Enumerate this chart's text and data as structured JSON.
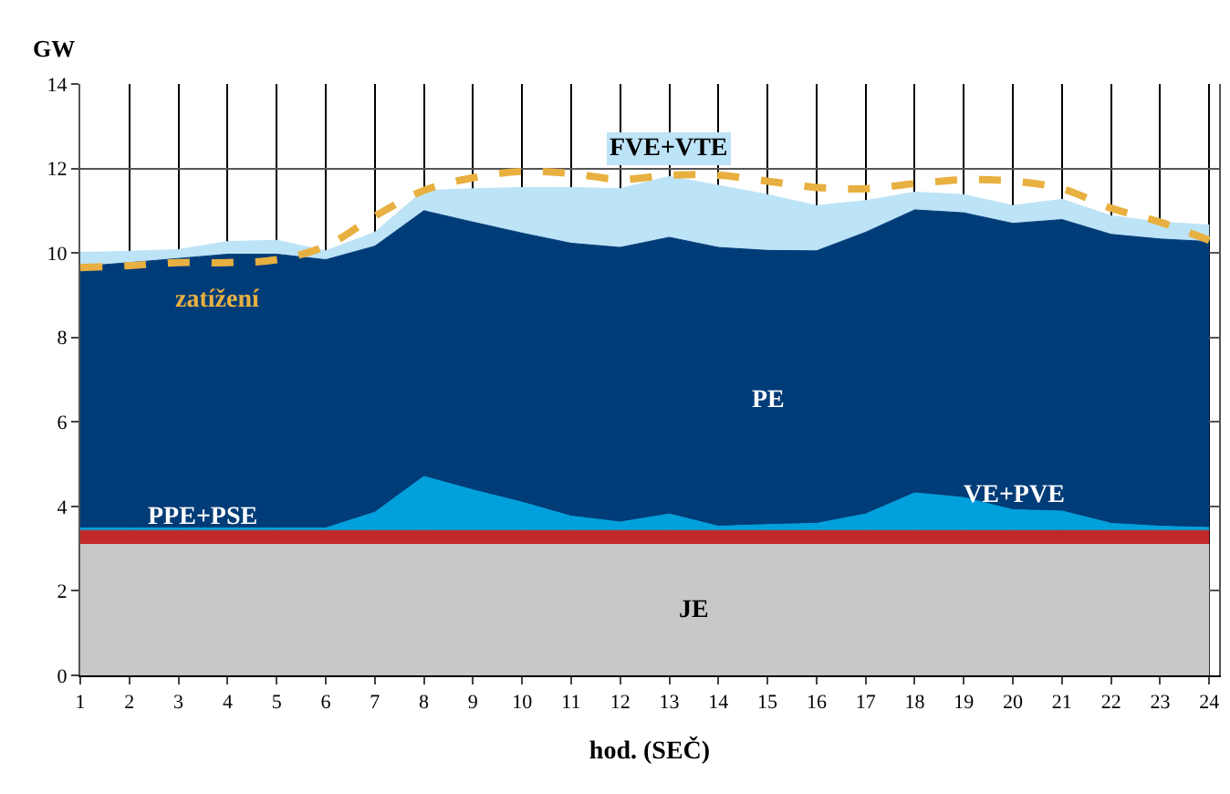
{
  "chart_data": {
    "type": "area",
    "stacked": true,
    "ylabel": "GW",
    "xlabel": "hod. (SEČ)",
    "x": [
      1,
      2,
      3,
      4,
      5,
      6,
      7,
      8,
      9,
      10,
      11,
      12,
      13,
      14,
      15,
      16,
      17,
      18,
      19,
      20,
      21,
      22,
      23,
      24
    ],
    "series": [
      {
        "name": "JE",
        "color": "#c8c8c8",
        "values": [
          3.1,
          3.1,
          3.1,
          3.1,
          3.1,
          3.1,
          3.1,
          3.1,
          3.1,
          3.1,
          3.1,
          3.1,
          3.1,
          3.1,
          3.1,
          3.1,
          3.1,
          3.1,
          3.1,
          3.1,
          3.1,
          3.1,
          3.1,
          3.1
        ]
      },
      {
        "name": "PPE+PSE",
        "color": "#c0282a",
        "values": [
          0.33,
          0.33,
          0.33,
          0.33,
          0.33,
          0.33,
          0.33,
          0.33,
          0.33,
          0.33,
          0.33,
          0.33,
          0.33,
          0.33,
          0.33,
          0.33,
          0.33,
          0.33,
          0.33,
          0.33,
          0.33,
          0.33,
          0.33,
          0.33
        ]
      },
      {
        "name": "VE+PVE",
        "color": "#00a0dc",
        "values": [
          0.06,
          0.06,
          0.06,
          0.06,
          0.06,
          0.06,
          0.43,
          1.28,
          0.96,
          0.67,
          0.34,
          0.2,
          0.39,
          0.1,
          0.14,
          0.17,
          0.39,
          0.89,
          0.78,
          0.49,
          0.46,
          0.17,
          0.1,
          0.07
        ]
      },
      {
        "name": "PE",
        "color": "#003c78",
        "values": [
          6.19,
          6.28,
          6.38,
          6.48,
          6.48,
          6.35,
          6.3,
          6.29,
          6.34,
          6.37,
          6.46,
          6.5,
          6.55,
          6.6,
          6.49,
          6.45,
          6.67,
          6.7,
          6.74,
          6.78,
          6.9,
          6.84,
          6.8,
          6.77
        ]
      },
      {
        "name": "FVE+VTE",
        "color": "#bde3f7",
        "values": [
          0.33,
          0.27,
          0.21,
          0.3,
          0.33,
          0.21,
          0.33,
          0.48,
          0.79,
          1.08,
          1.32,
          1.39,
          1.44,
          1.47,
          1.32,
          1.07,
          0.75,
          0.42,
          0.43,
          0.42,
          0.48,
          0.44,
          0.4,
          0.39
        ]
      },
      {
        "name": "zatížení",
        "type": "line",
        "line_style": "dashed",
        "color": "#e8b040",
        "values": [
          9.65,
          9.7,
          9.77,
          9.77,
          9.84,
          10.16,
          10.87,
          11.48,
          11.78,
          11.93,
          11.88,
          11.74,
          11.84,
          11.84,
          11.7,
          11.55,
          11.52,
          11.64,
          11.73,
          11.7,
          11.52,
          11.06,
          10.73,
          10.3
        ]
      }
    ],
    "xlim": [
      1,
      24.2
    ],
    "xticks": [
      1,
      2,
      3,
      4,
      5,
      6,
      7,
      8,
      9,
      10,
      11,
      12,
      13,
      14,
      15,
      16,
      17,
      18,
      19,
      20,
      21,
      22,
      23,
      24
    ],
    "ylim": [
      0,
      14
    ],
    "yticks": [
      0,
      2,
      4,
      6,
      8,
      10,
      12,
      14
    ],
    "grid": true,
    "legend": false,
    "marker": "none"
  }
}
